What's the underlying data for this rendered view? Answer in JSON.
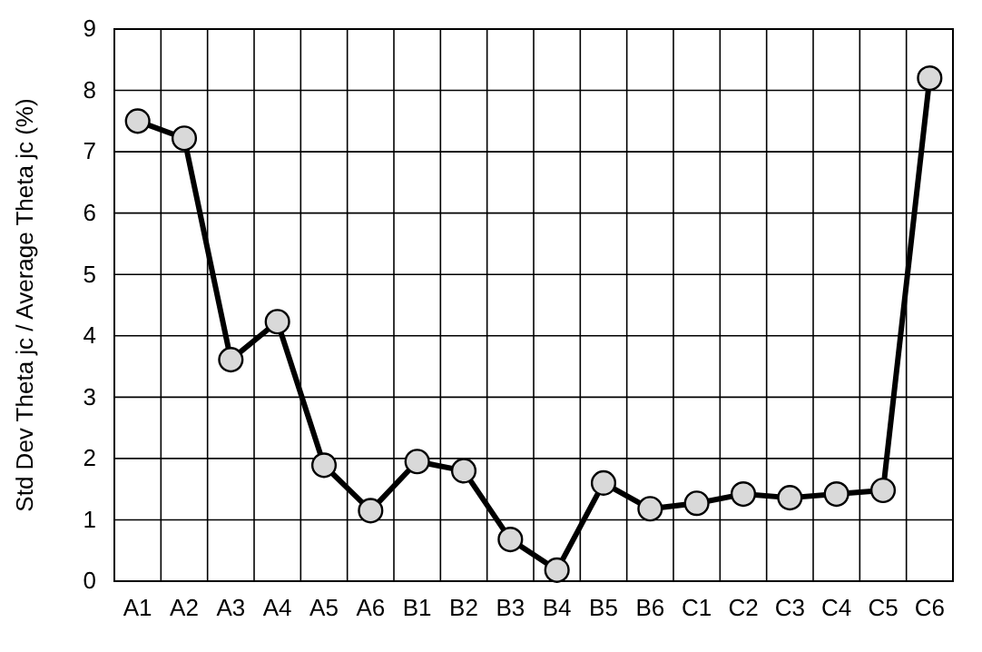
{
  "chart_data": {
    "type": "line",
    "ylabel": "Std Dev Theta jc / Average Theta jc (%)",
    "categories": [
      "A1",
      "A2",
      "A3",
      "A4",
      "A5",
      "A6",
      "B1",
      "B2",
      "B3",
      "B4",
      "B5",
      "B6",
      "C1",
      "C2",
      "C3",
      "C4",
      "C5",
      "C6"
    ],
    "series": [
      {
        "color": "#000000",
        "values": [
          7.5,
          7.22,
          3.61,
          4.23,
          1.89,
          1.15,
          1.95,
          1.8,
          0.68,
          0.18,
          1.6,
          1.18,
          1.27,
          1.42,
          1.36,
          1.42,
          1.48,
          8.2
        ]
      }
    ],
    "ylim": [
      0,
      9
    ],
    "yticks": [
      0,
      1,
      2,
      3,
      4,
      5,
      6,
      7,
      8,
      9
    ],
    "grid": true,
    "marker": "circle",
    "line_style": "solid"
  }
}
